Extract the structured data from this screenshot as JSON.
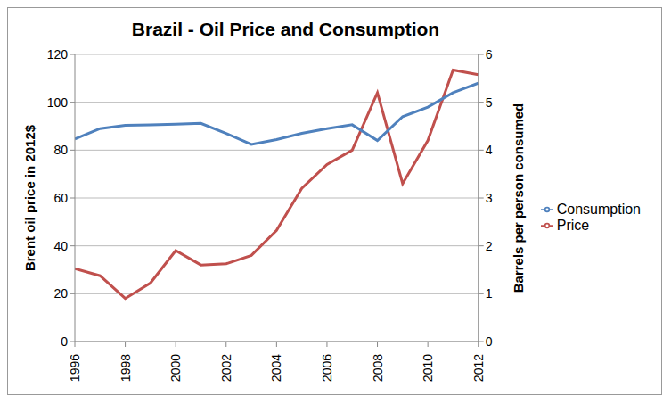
{
  "chart_data": {
    "type": "line",
    "title": "Brazil - Oil Price and Consumption",
    "x_label": "",
    "y_label": "Brent oil price in 2012$",
    "y2_label": "Barrels per person consumed",
    "x": [
      1996,
      1997,
      1998,
      1999,
      2000,
      2001,
      2002,
      2003,
      2004,
      2005,
      2006,
      2007,
      2008,
      2009,
      2010,
      2011,
      2012
    ],
    "xlim": [
      1996,
      2012
    ],
    "xticks": [
      1996,
      1998,
      2000,
      2002,
      2004,
      2006,
      2008,
      2010,
      2012
    ],
    "ylim": [
      0,
      120
    ],
    "yticks": [
      0,
      20,
      40,
      60,
      80,
      100,
      120
    ],
    "y2lim": [
      0,
      6
    ],
    "y2ticks": [
      0,
      1,
      2,
      3,
      4,
      5,
      6
    ],
    "grid": true,
    "legend": "right",
    "series": [
      {
        "name": "Price",
        "color": "#c0504d",
        "values": [
          30.5,
          27.5,
          18,
          24.5,
          38,
          32,
          32.5,
          36,
          46.5,
          64,
          74,
          80,
          104,
          66,
          84,
          113.5,
          111.5
        ]
      },
      {
        "name": "Consumption",
        "color": "#4f81bd",
        "axis": "y2",
        "values": [
          4.23,
          4.45,
          4.52,
          4.53,
          4.54,
          4.56,
          4.35,
          4.12,
          4.22,
          4.35,
          4.45,
          4.53,
          4.2,
          4.7,
          4.9,
          5.2,
          5.4
        ]
      }
    ]
  }
}
